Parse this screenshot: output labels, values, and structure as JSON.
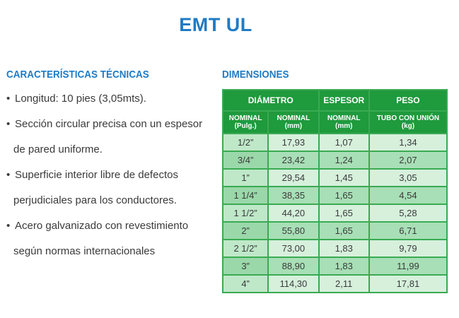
{
  "title": "EMT UL",
  "specs": {
    "heading": "CARACTERÍSTICAS TÉCNICAS",
    "items": [
      {
        "line1": "Longitud: 10 pies (3,05mts).",
        "line2": ""
      },
      {
        "line1": "Sección circular precisa con un espesor",
        "line2": "de pared uniforme."
      },
      {
        "line1": "Superficie interior libre de defectos",
        "line2": "perjudiciales para los conductores."
      },
      {
        "line1": "Acero galvanizado con revestimiento",
        "line2": "según normas internacionales"
      }
    ]
  },
  "dimensions": {
    "heading": "DIMENSIONES",
    "headers": {
      "diametro": "DIÁMETRO",
      "espesor": "ESPESOR",
      "peso": "PESO"
    },
    "subheaders": {
      "nominal_pulg_1": "NOMINAL",
      "nominal_pulg_2": "(Pulg.)",
      "nominal_mm_1": "NOMINAL",
      "nominal_mm_2": "(mm)",
      "espesor_mm_1": "NOMINAL",
      "espesor_mm_2": "(mm)",
      "peso_kg_1": "TUBO CON UNIÓN",
      "peso_kg_2": "(kg)"
    },
    "rows": [
      [
        "1/2”",
        "17,93",
        "1,07",
        "1,34"
      ],
      [
        "3/4”",
        "23,42",
        "1,24",
        "2,07"
      ],
      [
        "1”",
        "29,54",
        "1,45",
        "3,05"
      ],
      [
        "1 1/4”",
        "38,35",
        "1,65",
        "4,54"
      ],
      [
        "1 1/2”",
        "44,20",
        "1,65",
        "5,28"
      ],
      [
        "2”",
        "55,80",
        "1,65",
        "6,71"
      ],
      [
        "2 1/2”",
        "73,00",
        "1,83",
        "9,79"
      ],
      [
        "3”",
        "88,90",
        "1,83",
        "11,99"
      ],
      [
        "4”",
        "114,30",
        "2,11",
        "17,81"
      ]
    ]
  }
}
